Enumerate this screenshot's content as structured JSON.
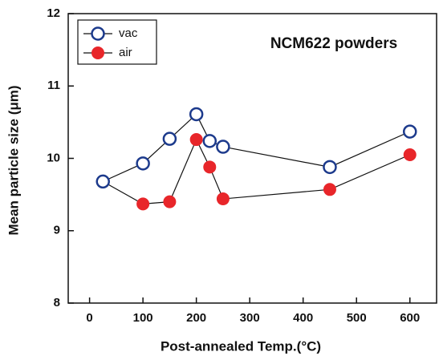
{
  "chart_data": {
    "type": "line",
    "x_label": "Post-annealed Temp.(°C)",
    "y_label": "Mean particle size (μm)",
    "annotation": "NCM622 powders",
    "x": [
      25,
      100,
      150,
      200,
      225,
      250,
      450,
      600
    ],
    "series": [
      {
        "name": "vac",
        "color": "#1c3a8c",
        "marker": "open-circle",
        "values": [
          9.68,
          9.93,
          10.27,
          10.61,
          10.24,
          10.16,
          9.88,
          10.37
        ]
      },
      {
        "name": "air",
        "color": "#e8262a",
        "marker": "filled-circle",
        "values": [
          9.68,
          9.37,
          9.4,
          10.26,
          9.88,
          9.44,
          9.57,
          10.05
        ]
      }
    ],
    "xlim": [
      -40,
      650
    ],
    "xticks": [
      0,
      100,
      200,
      300,
      400,
      500,
      600
    ],
    "ylim": [
      8,
      12
    ],
    "yticks": [
      8,
      9,
      10,
      11,
      12
    ],
    "legend": "upper left"
  }
}
